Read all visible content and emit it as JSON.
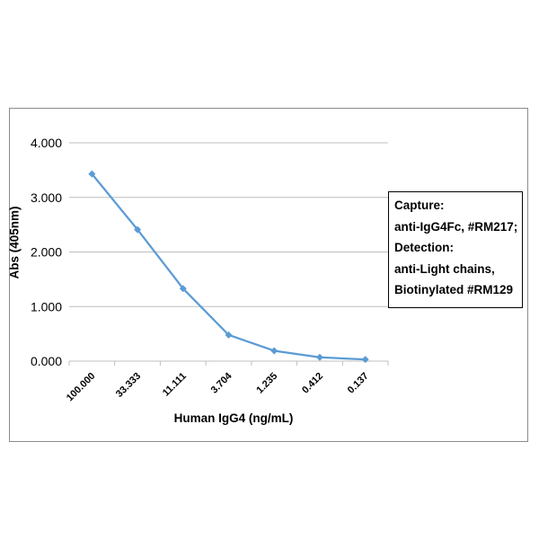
{
  "chart_data": {
    "type": "line",
    "categories": [
      "100.000",
      "33.333",
      "11.111",
      "3.704",
      "1.235",
      "0.412",
      "0.137"
    ],
    "series": [
      {
        "values": [
          3.43,
          2.41,
          1.33,
          0.48,
          0.19,
          0.07,
          0.03
        ]
      }
    ],
    "xlabel": "Human IgG4 (ng/mL)",
    "ylabel": "Abs (405nm)",
    "ylim": [
      0,
      4
    ],
    "yticks": [
      "0.000",
      "1.000",
      "2.000",
      "3.000",
      "4.000"
    ],
    "grid": true,
    "legend": {
      "placement": "right",
      "lines": [
        "Capture:",
        "anti-IgG4Fc, #RM217;",
        "Detection:",
        "anti-Light chains,",
        "Biotinylated #RM129"
      ]
    },
    "colors": {
      "series": "#5B9BD5",
      "grid": "#BFBFBF",
      "axis": "#BFBFBF",
      "text": "#000000"
    }
  }
}
